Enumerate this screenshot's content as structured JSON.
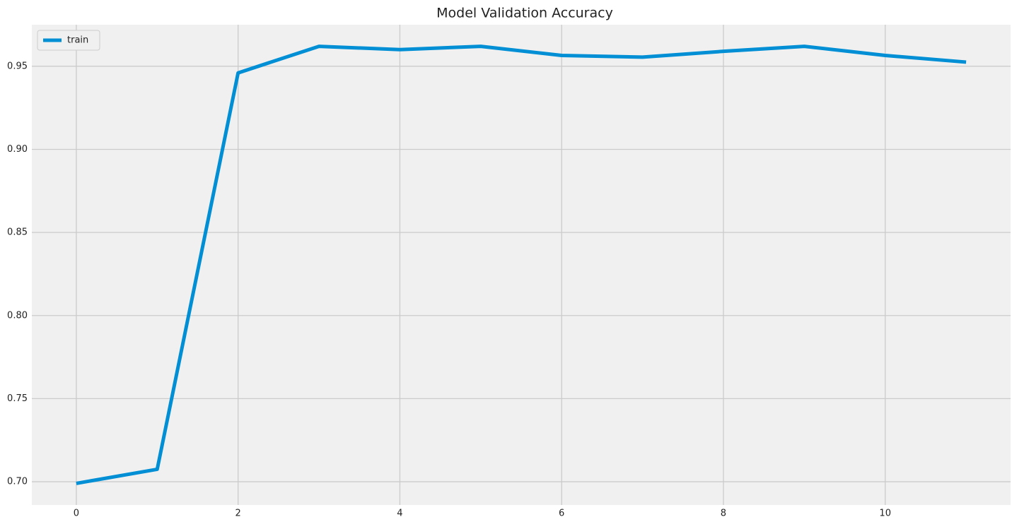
{
  "chart_data": {
    "type": "line",
    "title": "Model Validation Accuracy",
    "x": [
      0,
      1,
      2,
      3,
      4,
      5,
      6,
      7,
      8,
      9,
      10,
      11
    ],
    "series": [
      {
        "name": "train",
        "color": "#008fd5",
        "values": [
          0.699,
          0.7075,
          0.946,
          0.962,
          0.96,
          0.962,
          0.9565,
          0.9555,
          0.959,
          0.962,
          0.9565,
          0.9525
        ]
      }
    ],
    "xlim": [
      -0.55,
      11.55
    ],
    "xticks": [
      0,
      2,
      4,
      6,
      8,
      10
    ],
    "ylim": [
      0.686,
      0.975
    ],
    "yticks": [
      {
        "value": 0.7,
        "label": "0.70"
      },
      {
        "value": 0.75,
        "label": "0.75"
      },
      {
        "value": 0.8,
        "label": "0.80"
      },
      {
        "value": 0.85,
        "label": "0.85"
      },
      {
        "value": 0.9,
        "label": "0.90"
      },
      {
        "value": 0.95,
        "label": "0.95"
      }
    ],
    "grid": true,
    "legend": "upper left"
  }
}
